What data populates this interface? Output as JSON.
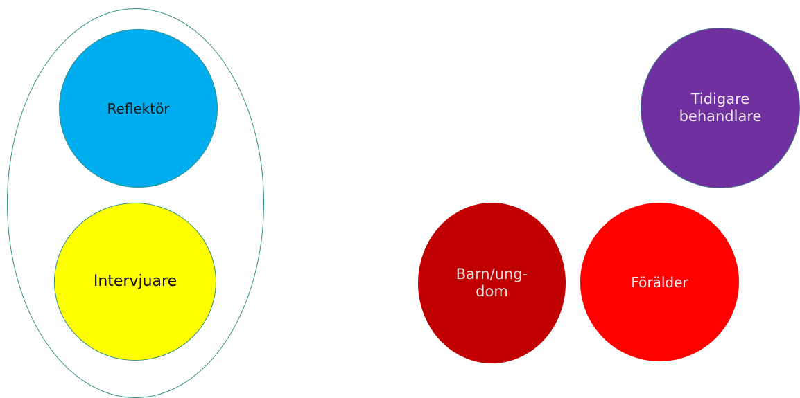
{
  "diagram": {
    "group_outline_color": "#2e8f86",
    "nodes": [
      {
        "id": "reflektor",
        "label": "Reflektör",
        "fill": "#00aeef"
      },
      {
        "id": "intervjuare",
        "label": "Intervjuare",
        "fill": "#ffff00"
      },
      {
        "id": "tidigare",
        "label": "Tidigare\nbehandlare",
        "fill": "#7030a0"
      },
      {
        "id": "barn",
        "label": "Barn/ung-\ndom",
        "fill": "#c00000"
      },
      {
        "id": "foralder",
        "label": "Förälder",
        "fill": "#ff0000"
      }
    ]
  }
}
